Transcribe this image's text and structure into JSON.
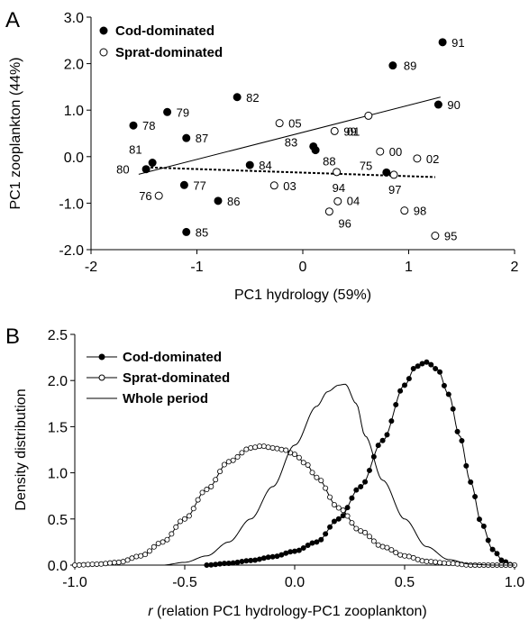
{
  "chart_data": [
    {
      "panel": "A",
      "type": "scatter",
      "xlabel": "PC1 hydrology (59%)",
      "ylabel": "PC1 zooplankton (44%)",
      "xlim": [
        -2,
        2
      ],
      "ylim": [
        -2.0,
        3.0
      ],
      "xticks": [
        -2,
        -1,
        0,
        1,
        2
      ],
      "xtick_labels": [
        "-2",
        "-1",
        "0",
        "1",
        "2"
      ],
      "yticks": [
        -2,
        -1,
        0,
        1,
        2,
        3
      ],
      "ytick_labels": [
        "-2.0",
        "-1.0",
        "0.0",
        "1.0",
        "2.0",
        "3.0"
      ],
      "legend": {
        "placement": "top-left",
        "entries": [
          "Cod-dominated",
          "Sprat-dominated"
        ]
      },
      "series": [
        {
          "name": "Cod-dominated",
          "marker": "filled-circle",
          "points": [
            {
              "label": "91",
              "x": 1.32,
              "y": 2.46
            },
            {
              "label": "89",
              "x": 0.85,
              "y": 1.96
            },
            {
              "label": "90",
              "x": 1.28,
              "y": 1.12
            },
            {
              "label": "82",
              "x": -0.62,
              "y": 1.28
            },
            {
              "label": "79",
              "x": -1.28,
              "y": 0.96
            },
            {
              "label": "78",
              "x": -1.6,
              "y": 0.67
            },
            {
              "label": "87",
              "x": -1.1,
              "y": 0.4
            },
            {
              "label": "81",
              "x": -1.42,
              "y": -0.13
            },
            {
              "label": "80",
              "x": -1.48,
              "y": -0.27
            },
            {
              "label": "83",
              "x": 0.1,
              "y": 0.22
            },
            {
              "label": "88",
              "x": 0.12,
              "y": 0.14
            },
            {
              "label": "84",
              "x": -0.5,
              "y": -0.18
            },
            {
              "label": "75",
              "x": 0.79,
              "y": -0.34
            },
            {
              "label": "77",
              "x": -1.12,
              "y": -0.61
            },
            {
              "label": "86",
              "x": -0.8,
              "y": -0.95
            },
            {
              "label": "85",
              "x": -1.1,
              "y": -1.62
            }
          ]
        },
        {
          "name": "Sprat-dominated",
          "marker": "open-circle",
          "points": [
            {
              "label": "05",
              "x": -0.22,
              "y": 0.72
            },
            {
              "label": "01",
              "x": 0.62,
              "y": 0.88
            },
            {
              "label": "99",
              "x": 0.3,
              "y": 0.55
            },
            {
              "label": "00",
              "x": 0.73,
              "y": 0.11
            },
            {
              "label": "02",
              "x": 1.08,
              "y": -0.04
            },
            {
              "label": "94",
              "x": 0.32,
              "y": -0.33
            },
            {
              "label": "97",
              "x": 0.86,
              "y": -0.39
            },
            {
              "label": "03",
              "x": -0.27,
              "y": -0.62
            },
            {
              "label": "76",
              "x": -1.36,
              "y": -0.84
            },
            {
              "label": "04",
              "x": 0.33,
              "y": -0.96
            },
            {
              "label": "96",
              "x": 0.25,
              "y": -1.18
            },
            {
              "label": "98",
              "x": 0.96,
              "y": -1.16
            },
            {
              "label": "95",
              "x": 1.25,
              "y": -1.7
            }
          ]
        }
      ],
      "lines": [
        {
          "style": "solid",
          "x": [
            -1.55,
            1.3
          ],
          "y": [
            -0.38,
            1.28
          ]
        },
        {
          "style": "dotted",
          "x": [
            -1.48,
            1.25
          ],
          "y": [
            -0.23,
            -0.44
          ]
        }
      ]
    },
    {
      "panel": "B",
      "type": "line",
      "xlabel_prefix": "r",
      "xlabel_rest": " (relation PC1 hydrology-PC1 zooplankton)",
      "ylabel": "Density distribution",
      "xlim": [
        -1.0,
        1.0
      ],
      "ylim": [
        0,
        2.5
      ],
      "xticks": [
        -1.0,
        -0.5,
        0.0,
        0.5,
        1.0
      ],
      "xtick_labels": [
        "-1.0",
        "-0.5",
        "0.0",
        "0.5",
        "1.0"
      ],
      "yticks": [
        0,
        0.5,
        1.0,
        1.5,
        2.0,
        2.5
      ],
      "ytick_labels": [
        "0.0",
        "0.5",
        "1.0",
        "1.5",
        "2.0",
        "2.5"
      ],
      "legend": {
        "placement": "top-left",
        "entries": [
          "Cod-dominated",
          "Sprat-dominated",
          "Whole period"
        ]
      },
      "series": [
        {
          "name": "Cod-dominated",
          "marker": "filled-circle",
          "x": [
            -0.4,
            -0.3,
            -0.2,
            -0.1,
            0.0,
            0.1,
            0.2,
            0.3,
            0.4,
            0.5,
            0.55,
            0.6,
            0.65,
            0.7,
            0.75,
            0.8,
            0.85,
            0.9,
            0.95,
            0.99
          ],
          "y": [
            0.0,
            0.02,
            0.05,
            0.09,
            0.15,
            0.25,
            0.5,
            0.85,
            1.35,
            1.95,
            2.15,
            2.2,
            2.12,
            1.85,
            1.4,
            0.9,
            0.45,
            0.17,
            0.04,
            0.0
          ]
        },
        {
          "name": "Sprat-dominated",
          "marker": "open-circle",
          "x": [
            -1.0,
            -0.9,
            -0.8,
            -0.7,
            -0.6,
            -0.5,
            -0.4,
            -0.3,
            -0.2,
            -0.15,
            -0.1,
            -0.05,
            0.0,
            0.05,
            0.1,
            0.2,
            0.3,
            0.4,
            0.5,
            0.6,
            0.7,
            0.8,
            0.9,
            1.0
          ],
          "y": [
            0.0,
            0.01,
            0.03,
            0.1,
            0.25,
            0.5,
            0.82,
            1.12,
            1.27,
            1.29,
            1.27,
            1.25,
            1.2,
            1.1,
            0.95,
            0.62,
            0.37,
            0.2,
            0.1,
            0.04,
            0.02,
            0.0,
            0.0,
            0.0
          ]
        },
        {
          "name": "Whole period",
          "marker": "none",
          "x": [
            -0.6,
            -0.5,
            -0.4,
            -0.3,
            -0.2,
            -0.1,
            0.0,
            0.1,
            0.15,
            0.2,
            0.23,
            0.28,
            0.32,
            0.4,
            0.5,
            0.6,
            0.7,
            0.8,
            0.9,
            1.0
          ],
          "y": [
            0.0,
            0.03,
            0.1,
            0.25,
            0.5,
            0.85,
            1.3,
            1.72,
            1.88,
            1.95,
            1.96,
            1.75,
            1.4,
            0.92,
            0.5,
            0.2,
            0.06,
            0.01,
            0.0,
            0.0
          ]
        }
      ]
    }
  ]
}
